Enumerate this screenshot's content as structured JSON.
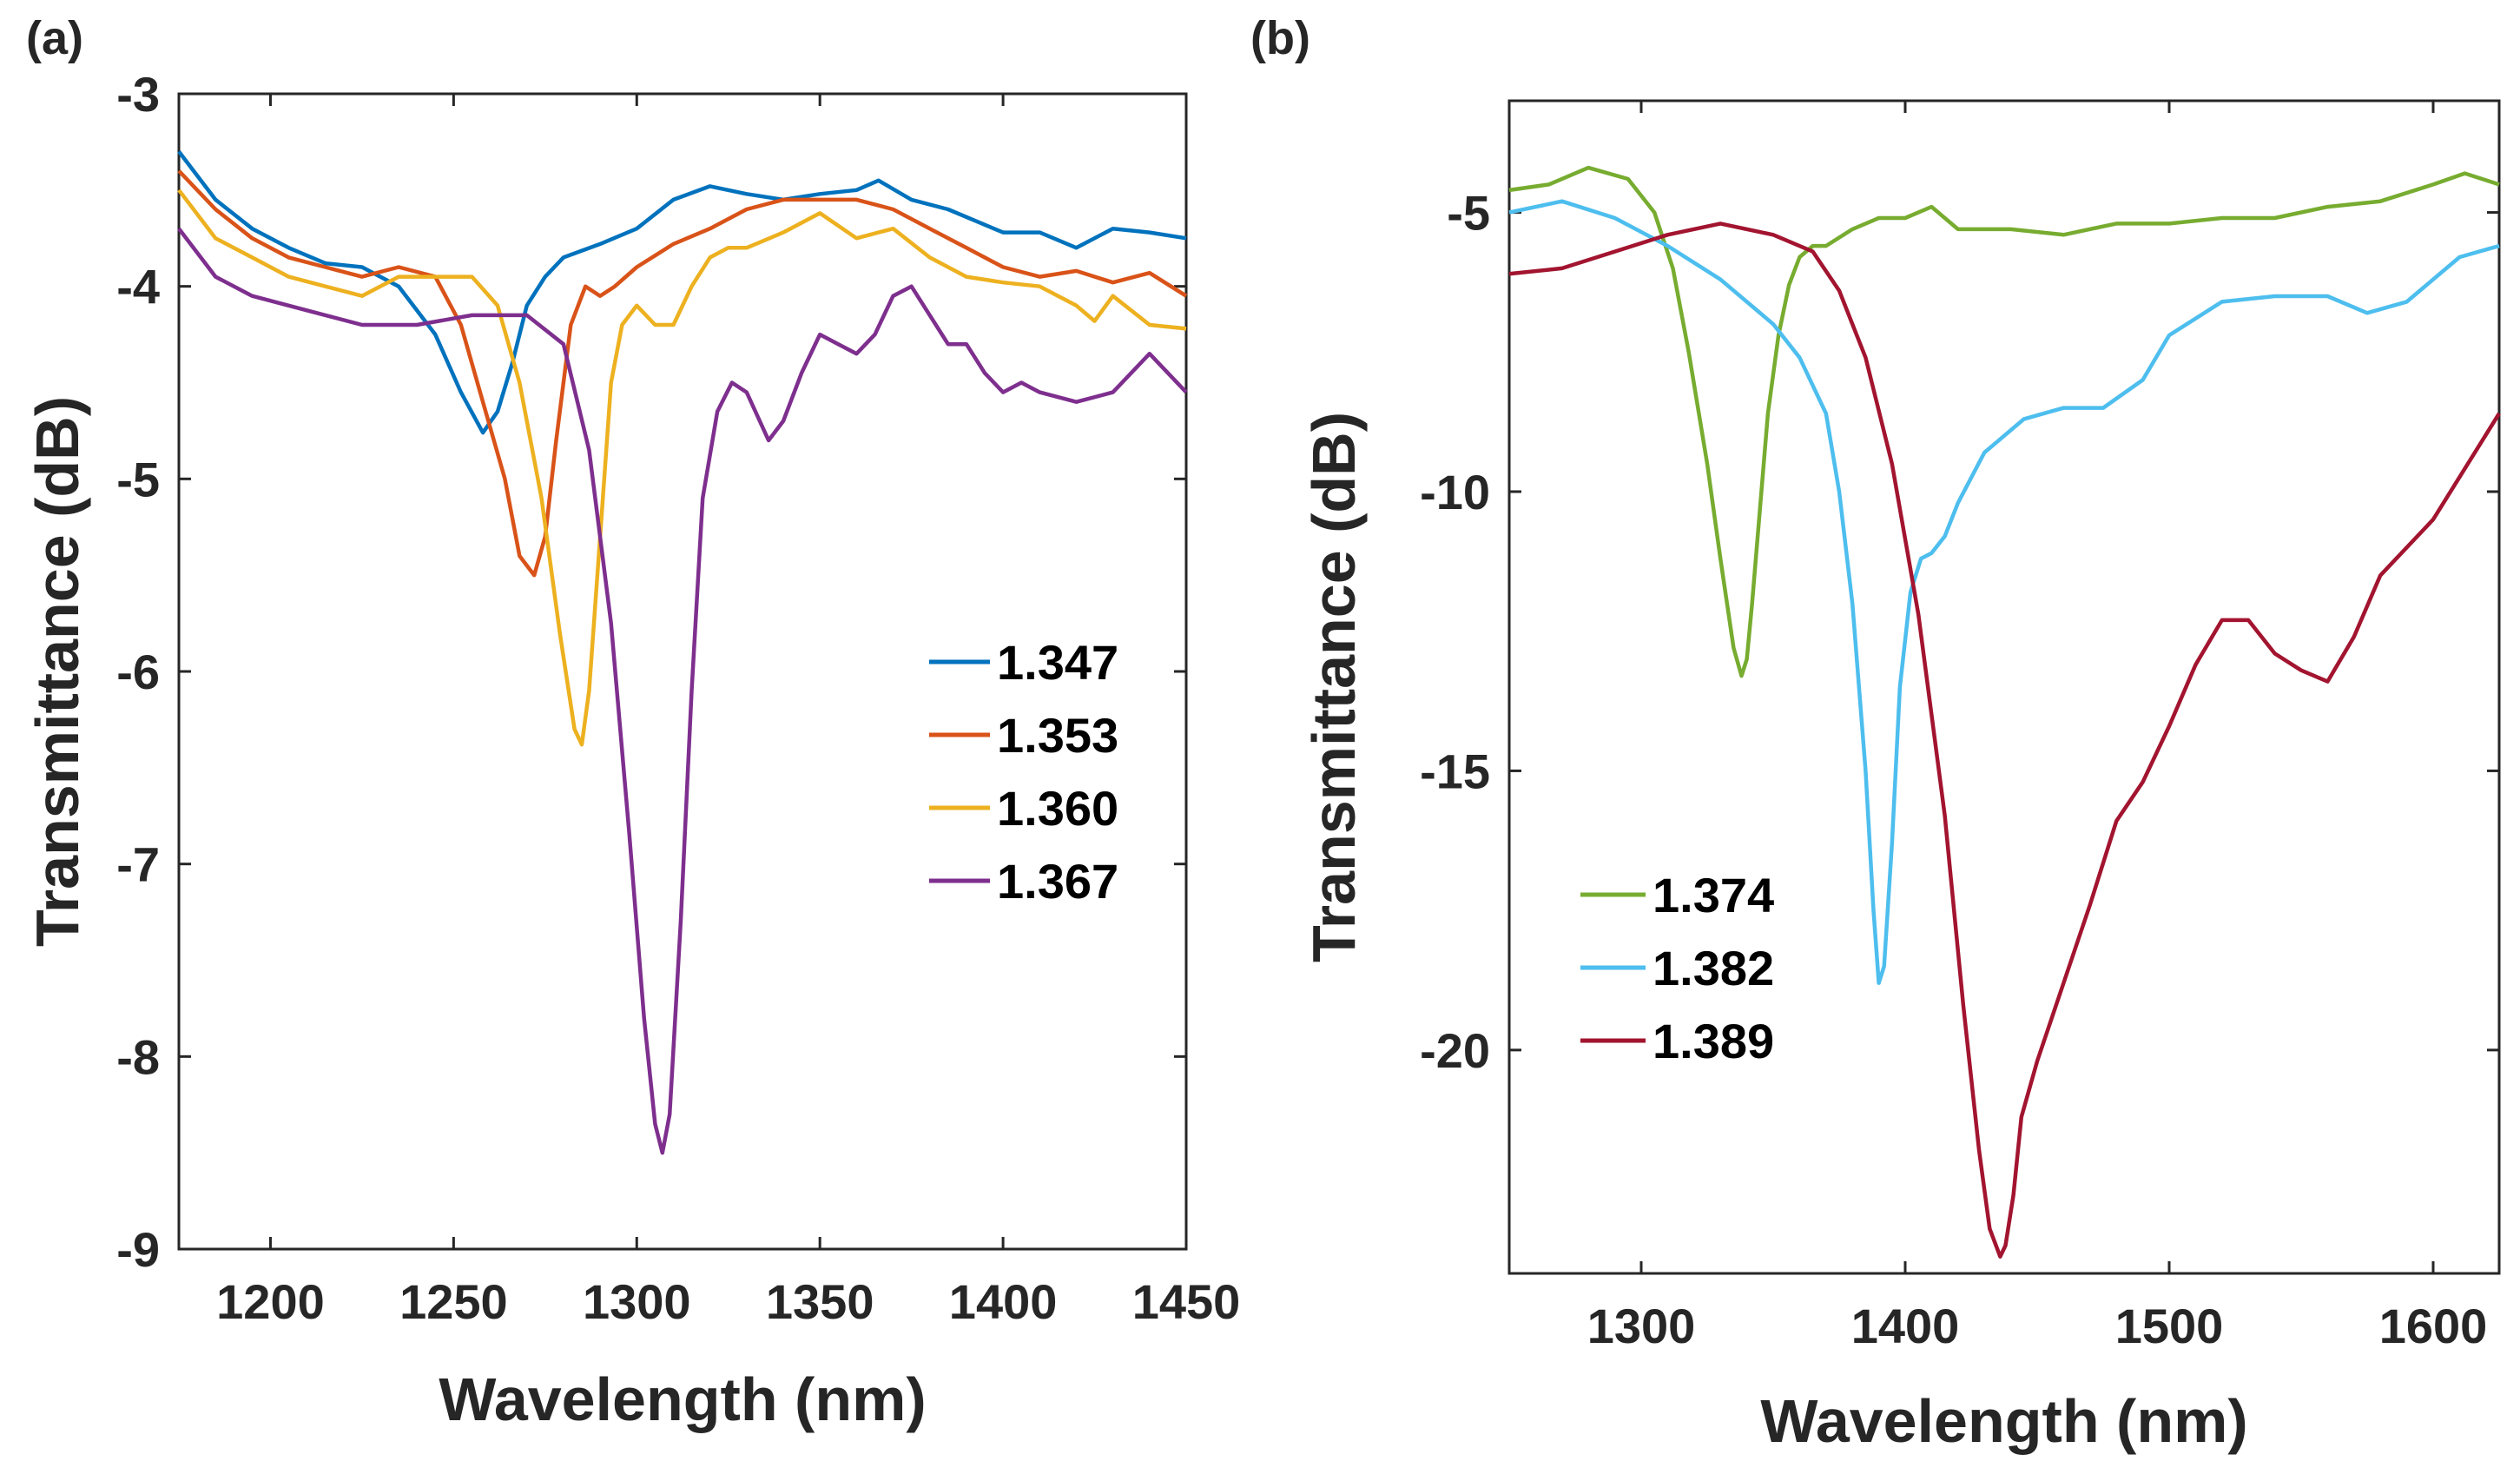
{
  "chart_data": [
    {
      "panel_label": "(a)",
      "type": "line",
      "xlabel": "Wavelength (nm)",
      "ylabel": "Transmittance (dB)",
      "xlim": [
        1175,
        1450
      ],
      "ylim": [
        -9,
        -3
      ],
      "xticks": [
        1200,
        1250,
        1300,
        1350,
        1400,
        1450
      ],
      "yticks": [
        -3,
        -4,
        -5,
        -6,
        -7,
        -8,
        -9
      ],
      "legend_position": "right-center",
      "series": [
        {
          "name": "1.347",
          "color": "#0072BD",
          "x": [
            1175,
            1185,
            1195,
            1205,
            1215,
            1225,
            1235,
            1245,
            1252,
            1258,
            1262,
            1266,
            1270,
            1275,
            1280,
            1290,
            1300,
            1310,
            1320,
            1330,
            1340,
            1350,
            1360,
            1366,
            1375,
            1385,
            1400,
            1410,
            1420,
            1430,
            1440,
            1450
          ],
          "y": [
            -3.3,
            -3.55,
            -3.7,
            -3.8,
            -3.88,
            -3.9,
            -4.0,
            -4.25,
            -4.55,
            -4.76,
            -4.65,
            -4.4,
            -4.1,
            -3.95,
            -3.85,
            -3.78,
            -3.7,
            -3.55,
            -3.48,
            -3.52,
            -3.55,
            -3.52,
            -3.5,
            -3.45,
            -3.55,
            -3.6,
            -3.72,
            -3.72,
            -3.8,
            -3.7,
            -3.72,
            -3.75
          ]
        },
        {
          "name": "1.353",
          "color": "#D95319",
          "x": [
            1175,
            1185,
            1195,
            1205,
            1215,
            1225,
            1235,
            1245,
            1252,
            1258,
            1264,
            1268,
            1272,
            1275,
            1278,
            1282,
            1286,
            1290,
            1294,
            1300,
            1310,
            1320,
            1330,
            1340,
            1350,
            1360,
            1370,
            1380,
            1390,
            1400,
            1410,
            1420,
            1430,
            1440,
            1450
          ],
          "y": [
            -3.4,
            -3.6,
            -3.75,
            -3.85,
            -3.9,
            -3.95,
            -3.9,
            -3.95,
            -4.2,
            -4.6,
            -5.0,
            -5.4,
            -5.5,
            -5.3,
            -4.8,
            -4.2,
            -4.0,
            -4.05,
            -4.0,
            -3.9,
            -3.78,
            -3.7,
            -3.6,
            -3.55,
            -3.55,
            -3.55,
            -3.6,
            -3.7,
            -3.8,
            -3.9,
            -3.95,
            -3.92,
            -3.98,
            -3.93,
            -4.05
          ]
        },
        {
          "name": "1.360",
          "color": "#EDB120",
          "x": [
            1175,
            1185,
            1195,
            1205,
            1215,
            1225,
            1235,
            1245,
            1255,
            1262,
            1268,
            1274,
            1279,
            1283,
            1285,
            1287,
            1290,
            1293,
            1296,
            1300,
            1305,
            1310,
            1315,
            1320,
            1325,
            1330,
            1340,
            1350,
            1360,
            1370,
            1380,
            1390,
            1400,
            1410,
            1420,
            1425,
            1430,
            1440,
            1450
          ],
          "y": [
            -3.5,
            -3.75,
            -3.85,
            -3.95,
            -4.0,
            -4.05,
            -3.95,
            -3.95,
            -3.95,
            -4.1,
            -4.5,
            -5.1,
            -5.8,
            -6.3,
            -6.38,
            -6.1,
            -5.3,
            -4.5,
            -4.2,
            -4.1,
            -4.2,
            -4.2,
            -4.0,
            -3.85,
            -3.8,
            -3.8,
            -3.72,
            -3.62,
            -3.75,
            -3.7,
            -3.85,
            -3.95,
            -3.98,
            -4.0,
            -4.1,
            -4.18,
            -4.05,
            -4.2,
            -4.22
          ]
        },
        {
          "name": "1.367",
          "color": "#7E2F8E",
          "x": [
            1175,
            1185,
            1195,
            1205,
            1215,
            1225,
            1240,
            1255,
            1270,
            1280,
            1287,
            1293,
            1298,
            1302,
            1305,
            1307,
            1309,
            1312,
            1315,
            1318,
            1322,
            1326,
            1330,
            1336,
            1340,
            1345,
            1350,
            1355,
            1360,
            1365,
            1370,
            1375,
            1380,
            1385,
            1390,
            1395,
            1400,
            1405,
            1410,
            1420,
            1430,
            1440,
            1450
          ],
          "y": [
            -3.7,
            -3.95,
            -4.05,
            -4.1,
            -4.15,
            -4.2,
            -4.2,
            -4.15,
            -4.15,
            -4.3,
            -4.85,
            -5.75,
            -6.85,
            -7.8,
            -8.35,
            -8.5,
            -8.3,
            -7.3,
            -6.1,
            -5.1,
            -4.65,
            -4.5,
            -4.55,
            -4.8,
            -4.7,
            -4.45,
            -4.25,
            -4.3,
            -4.35,
            -4.25,
            -4.05,
            -4.0,
            -4.15,
            -4.3,
            -4.3,
            -4.45,
            -4.55,
            -4.5,
            -4.55,
            -4.6,
            -4.55,
            -4.35,
            -4.55
          ]
        }
      ]
    },
    {
      "panel_label": "(b)",
      "type": "line",
      "xlabel": "Wavelength (nm)",
      "ylabel": "Transmittance (dB)",
      "xlim": [
        1250,
        1625
      ],
      "ylim": [
        -24,
        -3
      ],
      "xticks": [
        1300,
        1400,
        1500,
        1600
      ],
      "yticks": [
        -5,
        -10,
        -15,
        -20
      ],
      "legend_position": "bottom-left",
      "series": [
        {
          "name": "1.374",
          "color": "#77AC30",
          "x": [
            1250,
            1265,
            1280,
            1295,
            1305,
            1312,
            1318,
            1325,
            1330,
            1335,
            1338,
            1340,
            1342,
            1345,
            1348,
            1352,
            1356,
            1360,
            1365,
            1370,
            1380,
            1390,
            1400,
            1410,
            1420,
            1440,
            1460,
            1480,
            1500,
            1520,
            1540,
            1560,
            1580,
            1600,
            1612,
            1625
          ],
          "y": [
            -4.6,
            -4.5,
            -4.2,
            -4.4,
            -5.0,
            -6.0,
            -7.5,
            -9.5,
            -11.2,
            -12.8,
            -13.3,
            -13.0,
            -12.0,
            -10.3,
            -8.6,
            -7.2,
            -6.3,
            -5.8,
            -5.6,
            -5.6,
            -5.3,
            -5.1,
            -5.1,
            -4.9,
            -5.3,
            -5.3,
            -5.4,
            -5.2,
            -5.2,
            -5.1,
            -5.1,
            -4.9,
            -4.8,
            -4.5,
            -4.3,
            -4.5
          ]
        },
        {
          "name": "1.382",
          "color": "#4DBEEE",
          "x": [
            1250,
            1270,
            1290,
            1310,
            1330,
            1350,
            1360,
            1370,
            1375,
            1380,
            1385,
            1388,
            1390,
            1392,
            1395,
            1398,
            1402,
            1406,
            1410,
            1415,
            1420,
            1430,
            1445,
            1460,
            1475,
            1490,
            1500,
            1520,
            1540,
            1560,
            1575,
            1590,
            1610,
            1625
          ],
          "y": [
            -5.0,
            -4.8,
            -5.1,
            -5.6,
            -6.2,
            -7.0,
            -7.6,
            -8.6,
            -10.0,
            -12.0,
            -15.0,
            -17.5,
            -18.8,
            -18.5,
            -16.3,
            -13.5,
            -11.8,
            -11.2,
            -11.1,
            -10.8,
            -10.2,
            -9.3,
            -8.7,
            -8.5,
            -8.5,
            -8.0,
            -7.2,
            -6.6,
            -6.5,
            -6.5,
            -6.8,
            -6.6,
            -5.8,
            -5.6
          ]
        },
        {
          "name": "1.389",
          "color": "#A2142F",
          "x": [
            1250,
            1270,
            1290,
            1310,
            1330,
            1350,
            1365,
            1375,
            1385,
            1395,
            1405,
            1415,
            1422,
            1428,
            1432,
            1436,
            1438,
            1441,
            1444,
            1450,
            1460,
            1470,
            1480,
            1490,
            1500,
            1510,
            1520,
            1530,
            1540,
            1550,
            1560,
            1570,
            1580,
            1600,
            1625
          ],
          "y": [
            -6.1,
            -6.0,
            -5.7,
            -5.4,
            -5.2,
            -5.4,
            -5.7,
            -6.4,
            -7.6,
            -9.5,
            -12.2,
            -15.8,
            -19.2,
            -21.8,
            -23.2,
            -23.7,
            -23.5,
            -22.6,
            -21.2,
            -20.2,
            -18.8,
            -17.4,
            -15.9,
            -15.2,
            -14.2,
            -13.1,
            -12.3,
            -12.3,
            -12.9,
            -13.2,
            -13.4,
            -12.6,
            -11.5,
            -10.5,
            -8.6
          ]
        }
      ]
    }
  ]
}
